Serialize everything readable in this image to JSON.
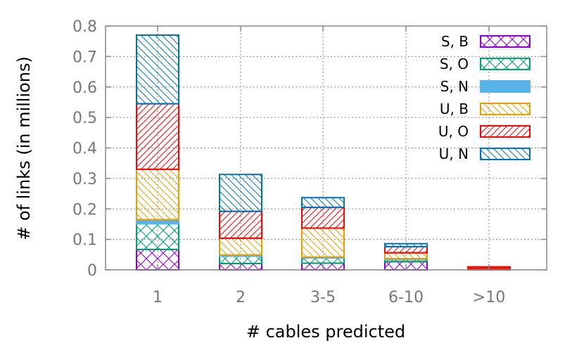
{
  "chart_data": {
    "type": "bar",
    "stacked": true,
    "categories": [
      "1",
      "2",
      "3-5",
      "6-10",
      ">10"
    ],
    "xlabel": "# cables predicted",
    "ylabel": "# of links (in millions)",
    "ylim": [
      0,
      0.8
    ],
    "yticks": [
      "0",
      "0.1",
      "0.2",
      "0.3",
      "0.4",
      "0.5",
      "0.6",
      "0.7",
      "0.8"
    ],
    "grid": true,
    "legend_position": "top-right",
    "series": [
      {
        "name": "S, B",
        "color": "#9400d3",
        "pattern": "crosshatch",
        "values": [
          0.067,
          0.021,
          0.022,
          0.027,
          0.003
        ]
      },
      {
        "name": "S, O",
        "color": "#009e73",
        "pattern": "crosshatch",
        "values": [
          0.084,
          0.024,
          0.017,
          0.007,
          0.001
        ]
      },
      {
        "name": "S, N",
        "color": "#56b4e9",
        "pattern": "solid",
        "values": [
          0.014,
          0.004,
          0.003,
          0.002,
          0.0
        ]
      },
      {
        "name": "U, B",
        "color": "#e69f00",
        "pattern": "hatch-back",
        "values": [
          0.165,
          0.055,
          0.095,
          0.02,
          0.001
        ]
      },
      {
        "name": "U, O",
        "color": "#ff0000",
        "pattern": "hatch-forward",
        "values": [
          0.215,
          0.088,
          0.068,
          0.02,
          0.005
        ]
      },
      {
        "name": "U, N",
        "color": "#0072b2",
        "pattern": "hatch-back",
        "values": [
          0.225,
          0.121,
          0.032,
          0.01,
          0.0
        ]
      }
    ]
  }
}
